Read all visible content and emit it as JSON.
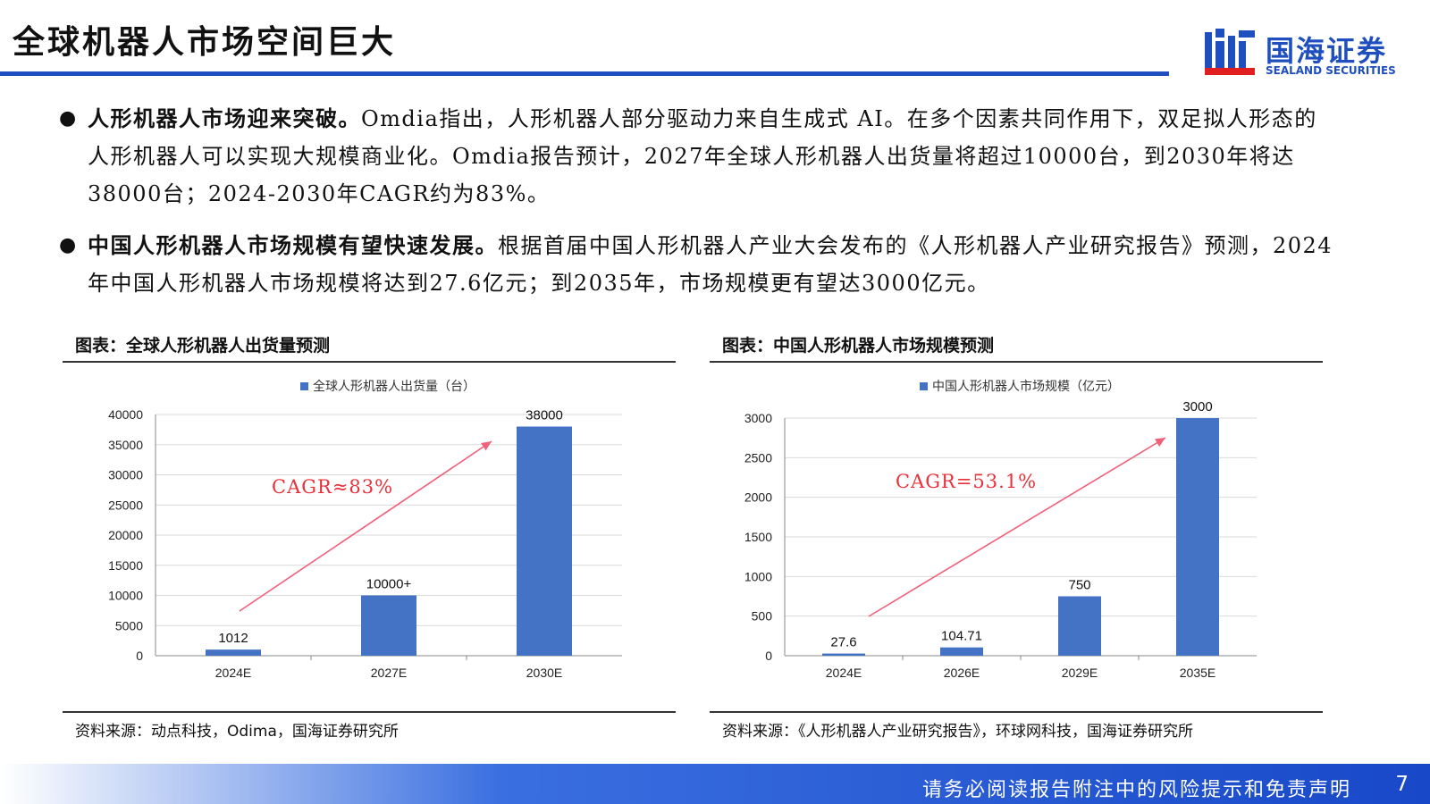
{
  "page": {
    "title": "全球机器人市场空间巨大",
    "logo": {
      "cn": "国海证券",
      "en": "SEALAND SECURITIES"
    },
    "footer": {
      "disclaimer": "请务必阅读报告附注中的风险提示和免责声明",
      "page_number": "7"
    },
    "colors": {
      "accent": "#1f4fbf",
      "bar": "#4472c4",
      "arrow": "#f0607a",
      "cagr_text": "#e8303a"
    }
  },
  "bullets": [
    {
      "lead": "人形机器人市场迎来突破。",
      "text": "Omdia指出，人形机器人部分驱动力来自生成式 AI。在多个因素共同作用下，双足拟人形态的人形机器人可以实现大规模商业化。Omdia报告预计，2027年全球人形机器人出货量将超过10000台，到2030年将达38000台；2024-2030年CAGR约为83%。"
    },
    {
      "lead": "中国人形机器人市场规模有望快速发展。",
      "text": "根据首届中国人形机器人产业大会发布的《人形机器人产业研究报告》预测，2024年中国人形机器人市场规模将达到27.6亿元；到2035年，市场规模更有望达3000亿元。"
    }
  ],
  "charts": [
    {
      "panel_title": "图表：全球人形机器人出货量预测",
      "source": "资料来源：动点科技，Odima，国海证券研究所",
      "annotation": "CAGR≈83%"
    },
    {
      "panel_title": "图表：中国人形机器人市场规模预测",
      "source": "资料来源：《人形机器人产业研究报告》，环球网科技，国海证券研究所",
      "annotation": "CAGR=53.1%"
    }
  ],
  "chart_data": [
    {
      "type": "bar",
      "title": "",
      "legend": "全球人形机器人出货量（台）",
      "legend_position": "top",
      "categories": [
        "2024E",
        "2027E",
        "2030E"
      ],
      "values": [
        1012,
        10000,
        38000
      ],
      "data_labels": [
        "1012",
        "10000+",
        "38000"
      ],
      "yticks": [
        "0",
        "5000",
        "10000",
        "15000",
        "20000",
        "25000",
        "30000",
        "35000",
        "40000"
      ],
      "ylim": [
        0,
        40000
      ],
      "grid": true
    },
    {
      "type": "bar",
      "title": "",
      "legend": "中国人形机器人市场规模（亿元）",
      "legend_position": "top",
      "categories": [
        "2024E",
        "2026E",
        "2029E",
        "2035E"
      ],
      "values": [
        27.6,
        104.71,
        750,
        3000
      ],
      "data_labels": [
        "27.6",
        "104.71",
        "750",
        "3000"
      ],
      "yticks": [
        "0",
        "500",
        "1000",
        "1500",
        "2000",
        "2500",
        "3000"
      ],
      "ylim": [
        0,
        3000
      ],
      "grid": true
    }
  ]
}
